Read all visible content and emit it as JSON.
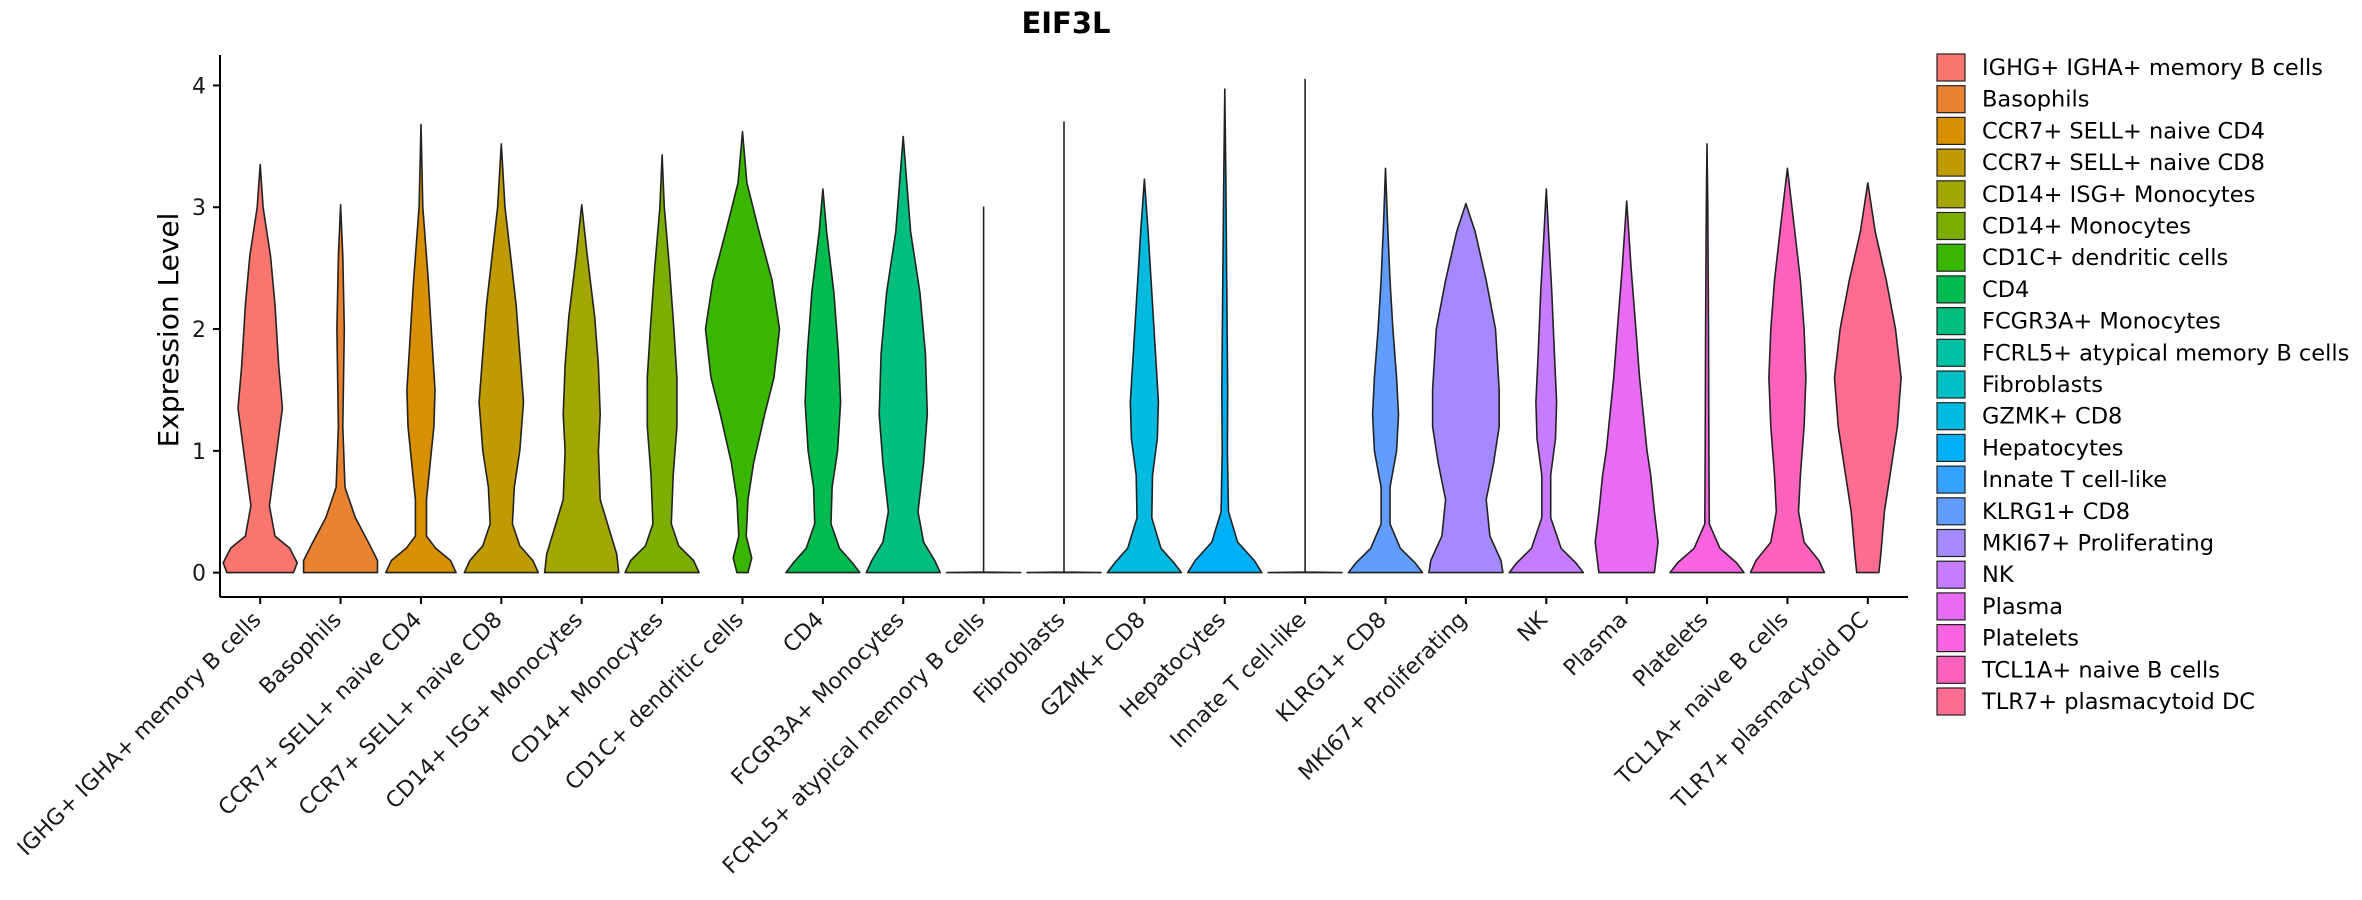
{
  "chart_data": {
    "type": "violin",
    "title": "EIF3L",
    "xlabel": "",
    "ylabel": "Expression Level",
    "ylim": [
      -0.2,
      4.25
    ],
    "yticks": [
      0,
      1,
      2,
      3,
      4
    ],
    "categories": [
      " IGHG+ IGHA+ memory B cells",
      "Basophils",
      "CCR7+ SELL+ naive CD4",
      "CCR7+ SELL+ naive CD8",
      "CD14+ ISG+ Monocytes",
      "CD14+ Monocytes",
      "CD1C+ dendritic cells",
      "CD4",
      "FCGR3A+ Monocytes",
      "FCRL5+ atypical memory B cells",
      "Fibroblasts",
      "GZMK+ CD8",
      "Hepatocytes",
      "Innate T cell-like",
      "KLRG1+ CD8",
      "MKI67+ Proliferating",
      "NK",
      "Plasma",
      "Platelets",
      "TCL1A+ naive B cells",
      "TLR7+ plasmacytoid DC"
    ],
    "colors": [
      "#F8766D",
      "#EA8331",
      "#D89000",
      "#C09B00",
      "#A3A500",
      "#7CAE00",
      "#39B600",
      "#00BB4E",
      "#00BF7D",
      "#00C1A3",
      "#00BFC4",
      "#00BAE0",
      "#00B0F6",
      "#35A2FF",
      "#619CFF",
      "#A58AFF",
      "#C77CFF",
      "#E76BF3",
      "#F763E0",
      "#FF62BC",
      "#FF6C91"
    ],
    "violins": [
      {
        "ymax": 3.35,
        "profile": [
          [
            0,
            0.9
          ],
          [
            0.08,
            1.0
          ],
          [
            0.2,
            0.8
          ],
          [
            0.3,
            0.4
          ],
          [
            0.55,
            0.25
          ],
          [
            1.0,
            0.45
          ],
          [
            1.35,
            0.6
          ],
          [
            1.7,
            0.5
          ],
          [
            2.2,
            0.4
          ],
          [
            2.6,
            0.28
          ],
          [
            3.0,
            0.08
          ],
          [
            3.35,
            0.0
          ]
        ]
      },
      {
        "ymax": 3.02,
        "profile": [
          [
            0,
            1.0
          ],
          [
            0.1,
            1.0
          ],
          [
            0.25,
            0.75
          ],
          [
            0.45,
            0.4
          ],
          [
            0.7,
            0.12
          ],
          [
            1.2,
            0.06
          ],
          [
            2.0,
            0.1
          ],
          [
            2.6,
            0.06
          ],
          [
            3.02,
            0.0
          ]
        ]
      },
      {
        "ymax": 3.68,
        "profile": [
          [
            0,
            0.95
          ],
          [
            0.1,
            0.8
          ],
          [
            0.2,
            0.4
          ],
          [
            0.3,
            0.15
          ],
          [
            0.6,
            0.15
          ],
          [
            0.9,
            0.25
          ],
          [
            1.2,
            0.35
          ],
          [
            1.5,
            0.38
          ],
          [
            1.9,
            0.3
          ],
          [
            2.4,
            0.2
          ],
          [
            3.0,
            0.05
          ],
          [
            3.68,
            0.0
          ]
        ]
      },
      {
        "ymax": 3.52,
        "profile": [
          [
            0,
            1.0
          ],
          [
            0.1,
            0.85
          ],
          [
            0.22,
            0.5
          ],
          [
            0.4,
            0.3
          ],
          [
            0.7,
            0.35
          ],
          [
            1.0,
            0.5
          ],
          [
            1.4,
            0.6
          ],
          [
            1.8,
            0.5
          ],
          [
            2.2,
            0.4
          ],
          [
            2.6,
            0.25
          ],
          [
            3.0,
            0.1
          ],
          [
            3.52,
            0.0
          ]
        ]
      },
      {
        "ymax": 3.02,
        "profile": [
          [
            0,
            1.0
          ],
          [
            0.15,
            0.95
          ],
          [
            0.35,
            0.75
          ],
          [
            0.6,
            0.5
          ],
          [
            1.0,
            0.45
          ],
          [
            1.3,
            0.5
          ],
          [
            1.7,
            0.45
          ],
          [
            2.1,
            0.35
          ],
          [
            2.6,
            0.15
          ],
          [
            3.02,
            0.0
          ]
        ]
      },
      {
        "ymax": 3.43,
        "profile": [
          [
            0,
            1.0
          ],
          [
            0.1,
            0.85
          ],
          [
            0.22,
            0.45
          ],
          [
            0.4,
            0.25
          ],
          [
            0.8,
            0.3
          ],
          [
            1.2,
            0.4
          ],
          [
            1.6,
            0.4
          ],
          [
            2.0,
            0.32
          ],
          [
            2.5,
            0.2
          ],
          [
            3.0,
            0.06
          ],
          [
            3.43,
            0.0
          ]
        ]
      },
      {
        "ymax": 3.62,
        "profile": [
          [
            0,
            0.15
          ],
          [
            0.12,
            0.25
          ],
          [
            0.3,
            0.1
          ],
          [
            0.6,
            0.15
          ],
          [
            0.9,
            0.3
          ],
          [
            1.3,
            0.6
          ],
          [
            1.6,
            0.85
          ],
          [
            2.0,
            1.0
          ],
          [
            2.4,
            0.8
          ],
          [
            2.8,
            0.45
          ],
          [
            3.2,
            0.12
          ],
          [
            3.62,
            0.0
          ]
        ]
      },
      {
        "ymax": 3.15,
        "profile": [
          [
            0,
            1.0
          ],
          [
            0.08,
            0.8
          ],
          [
            0.2,
            0.45
          ],
          [
            0.4,
            0.22
          ],
          [
            0.7,
            0.25
          ],
          [
            1.0,
            0.4
          ],
          [
            1.4,
            0.48
          ],
          [
            1.8,
            0.42
          ],
          [
            2.3,
            0.3
          ],
          [
            2.8,
            0.1
          ],
          [
            3.15,
            0.0
          ]
        ]
      },
      {
        "ymax": 3.58,
        "profile": [
          [
            0,
            1.0
          ],
          [
            0.1,
            0.85
          ],
          [
            0.25,
            0.55
          ],
          [
            0.5,
            0.4
          ],
          [
            0.9,
            0.55
          ],
          [
            1.3,
            0.65
          ],
          [
            1.8,
            0.6
          ],
          [
            2.3,
            0.45
          ],
          [
            2.8,
            0.2
          ],
          [
            3.58,
            0.0
          ]
        ]
      },
      {
        "ymax": 3.0,
        "profile": [
          [
            0,
            1.0
          ],
          [
            0.005,
            0.0
          ],
          [
            3.0,
            0.0
          ]
        ]
      },
      {
        "ymax": 3.7,
        "profile": [
          [
            0,
            1.0
          ],
          [
            0.005,
            0.0
          ],
          [
            3.7,
            0.0
          ]
        ]
      },
      {
        "ymax": 3.23,
        "profile": [
          [
            0,
            1.0
          ],
          [
            0.08,
            0.8
          ],
          [
            0.2,
            0.45
          ],
          [
            0.45,
            0.2
          ],
          [
            0.8,
            0.22
          ],
          [
            1.1,
            0.35
          ],
          [
            1.4,
            0.38
          ],
          [
            1.8,
            0.3
          ],
          [
            2.3,
            0.2
          ],
          [
            2.8,
            0.1
          ],
          [
            3.23,
            0.0
          ]
        ]
      },
      {
        "ymax": 3.97,
        "profile": [
          [
            0,
            1.0
          ],
          [
            0.1,
            0.8
          ],
          [
            0.25,
            0.35
          ],
          [
            0.5,
            0.1
          ],
          [
            1.0,
            0.07
          ],
          [
            1.5,
            0.08
          ],
          [
            2.5,
            0.05
          ],
          [
            3.2,
            0.03
          ],
          [
            3.97,
            0.0
          ]
        ]
      },
      {
        "ymax": 4.05,
        "profile": [
          [
            0,
            1.0
          ],
          [
            0.005,
            0.0
          ],
          [
            4.05,
            0.0
          ]
        ]
      },
      {
        "ymax": 3.32,
        "profile": [
          [
            0,
            1.0
          ],
          [
            0.08,
            0.8
          ],
          [
            0.2,
            0.4
          ],
          [
            0.4,
            0.12
          ],
          [
            0.7,
            0.12
          ],
          [
            1.0,
            0.3
          ],
          [
            1.3,
            0.35
          ],
          [
            1.6,
            0.3
          ],
          [
            2.0,
            0.2
          ],
          [
            2.4,
            0.12
          ],
          [
            2.9,
            0.05
          ],
          [
            3.32,
            0.0
          ]
        ]
      },
      {
        "ymax": 3.03,
        "profile": [
          [
            0,
            1.0
          ],
          [
            0.1,
            0.95
          ],
          [
            0.3,
            0.65
          ],
          [
            0.6,
            0.55
          ],
          [
            0.9,
            0.75
          ],
          [
            1.2,
            0.9
          ],
          [
            1.5,
            0.9
          ],
          [
            2.0,
            0.8
          ],
          [
            2.4,
            0.55
          ],
          [
            2.8,
            0.25
          ],
          [
            3.03,
            0.0
          ]
        ]
      },
      {
        "ymax": 3.15,
        "profile": [
          [
            0,
            1.0
          ],
          [
            0.08,
            0.8
          ],
          [
            0.2,
            0.4
          ],
          [
            0.45,
            0.12
          ],
          [
            0.8,
            0.12
          ],
          [
            1.1,
            0.25
          ],
          [
            1.4,
            0.28
          ],
          [
            1.8,
            0.22
          ],
          [
            2.3,
            0.15
          ],
          [
            2.8,
            0.06
          ],
          [
            3.15,
            0.0
          ]
        ]
      },
      {
        "ymax": 3.05,
        "profile": [
          [
            0,
            0.75
          ],
          [
            0.25,
            0.85
          ],
          [
            0.5,
            0.75
          ],
          [
            0.8,
            0.65
          ],
          [
            1.0,
            0.55
          ],
          [
            1.3,
            0.45
          ],
          [
            1.6,
            0.35
          ],
          [
            2.0,
            0.25
          ],
          [
            2.5,
            0.12
          ],
          [
            3.05,
            0.0
          ]
        ]
      },
      {
        "ymax": 3.52,
        "profile": [
          [
            0,
            1.0
          ],
          [
            0.08,
            0.8
          ],
          [
            0.2,
            0.35
          ],
          [
            0.4,
            0.06
          ],
          [
            1.0,
            0.05
          ],
          [
            2.0,
            0.04
          ],
          [
            3.0,
            0.02
          ],
          [
            3.52,
            0.0
          ]
        ]
      },
      {
        "ymax": 3.32,
        "profile": [
          [
            0,
            1.0
          ],
          [
            0.1,
            0.85
          ],
          [
            0.25,
            0.45
          ],
          [
            0.5,
            0.3
          ],
          [
            0.8,
            0.35
          ],
          [
            1.2,
            0.45
          ],
          [
            1.6,
            0.5
          ],
          [
            2.0,
            0.45
          ],
          [
            2.4,
            0.35
          ],
          [
            2.8,
            0.2
          ],
          [
            3.32,
            0.0
          ]
        ]
      },
      {
        "ymax": 3.2,
        "profile": [
          [
            0,
            0.3
          ],
          [
            0.15,
            0.35
          ],
          [
            0.5,
            0.45
          ],
          [
            0.8,
            0.6
          ],
          [
            1.2,
            0.8
          ],
          [
            1.6,
            0.9
          ],
          [
            2.0,
            0.75
          ],
          [
            2.4,
            0.5
          ],
          [
            2.8,
            0.2
          ],
          [
            3.2,
            0.0
          ]
        ]
      }
    ],
    "legend": {
      "position": "right"
    }
  }
}
